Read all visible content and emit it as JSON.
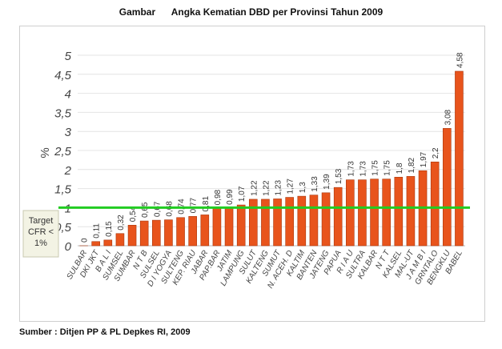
{
  "page": {
    "title": "Gambar      Angka Kematian DBD per Provinsi Tahun 2009",
    "source": "Sumber : Ditjen PP & PL Depkes  RI, 2009",
    "target_label": [
      "Target",
      "CFR <",
      "1%"
    ]
  },
  "chart_data": {
    "type": "bar",
    "title": "Angka Kematian DBD per Provinsi Tahun 2009",
    "ylabel": "%",
    "xlabel": "",
    "ylim": [
      0,
      5
    ],
    "yticks": [
      "0",
      "0,5",
      "1",
      "1,5",
      "2",
      "2,5",
      "3",
      "3,5",
      "4",
      "4,5",
      "5"
    ],
    "grid": true,
    "bar_color": "#e8541c",
    "target_line": {
      "value": 1,
      "color": "#22cc22"
    },
    "categories": [
      "SULBAR",
      "DKI JKT",
      "B A L I",
      "SUMSEL",
      "SUMBAR",
      "N T B",
      "SULSEL",
      "D I YOGYA",
      "SULTENG",
      "KEP. RIAU",
      "JABAR",
      "PAP.BAR",
      "JATIM",
      "LAMPUNG",
      "SULUT",
      "KALTENG",
      "SUMUT",
      "N. ACEH. D",
      "KALTIM",
      "BANTEN",
      "JATENG",
      "PAPUA",
      "R I A U",
      "SULTRA",
      "KALBAR",
      "N T T",
      "KALSEL",
      "MAL-UT",
      "J A M B I",
      "GRNTALO",
      "BENGKLU",
      "BABEL"
    ],
    "values": [
      0,
      0.11,
      0.15,
      0.32,
      0.54,
      0.65,
      0.67,
      0.68,
      0.74,
      0.77,
      0.81,
      0.98,
      0.99,
      1.07,
      1.22,
      1.22,
      1.23,
      1.27,
      1.3,
      1.33,
      1.39,
      1.53,
      1.73,
      1.73,
      1.75,
      1.75,
      1.8,
      1.82,
      1.97,
      2.2,
      3.08,
      4.58
    ],
    "value_labels": [
      "0",
      "0,11",
      "0,15",
      "0,32",
      "0,54",
      "0,65",
      "0,67",
      "0,68",
      "0,74",
      "0,77",
      "0,81",
      "0,98",
      "0,99",
      "1,07",
      "1,22",
      "1,22",
      "1,23",
      "1,27",
      "1,3",
      "1,33",
      "1,39",
      "1,53",
      "1,73",
      "1,73",
      "1,75",
      "1,75",
      "1,8",
      "1,82",
      "1,97",
      "2,2",
      "3,08",
      "4,58"
    ]
  }
}
